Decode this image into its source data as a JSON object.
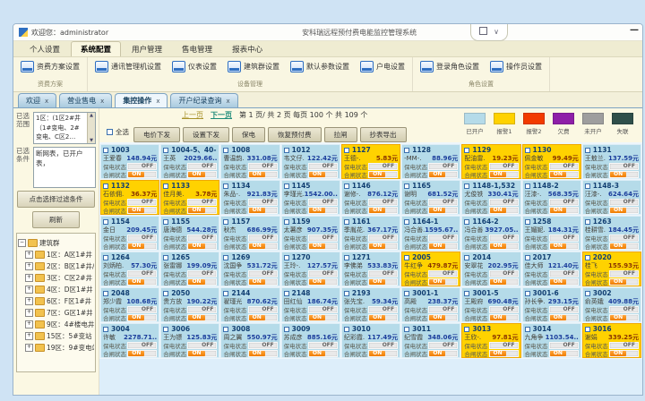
{
  "window": {
    "greeting": "欢迎您：administrator",
    "title": "安科瑞远程预付费电能监控管理系统",
    "collapse_glyph": "∨",
    "minimize_glyph": "—"
  },
  "menu_tabs": [
    {
      "label": "个人设置",
      "active": false
    },
    {
      "label": "系统配置",
      "active": true
    },
    {
      "label": "用户管理",
      "active": false
    },
    {
      "label": "售电管理",
      "active": false
    },
    {
      "label": "报表中心",
      "active": false
    }
  ],
  "ribbon": {
    "groups": [
      {
        "caption": "资费方案",
        "items": [
          "资费方案设置"
        ]
      },
      {
        "caption": "设备管理",
        "items": [
          "通讯管理机设置",
          "仪表设置",
          "建筑群设置",
          "默认参数设置",
          "户电设置"
        ]
      },
      {
        "caption": "角色设置",
        "items": [
          "登录角色设置",
          "操作员设置"
        ]
      }
    ]
  },
  "doc_tabs": [
    {
      "label": "欢迎",
      "active": false
    },
    {
      "label": "营业售电",
      "active": false
    },
    {
      "label": "集控操作",
      "active": true
    },
    {
      "label": "开户纪录查询",
      "active": false
    }
  ],
  "sidebar": {
    "scope_label": "已选范围",
    "scope_lines": [
      "1区：(1区2#井",
      "（1#变电、2#",
      "变电、C区2…"
    ],
    "cond_label": "已选条件",
    "cond_text": "断网表，已开户表，",
    "filter_button": "点击选择过滤条件",
    "refresh_button": "刷新",
    "tree": {
      "root": "建筑群",
      "nodes": [
        "1区：A区1#井",
        "2区：B区1#井/B区1#",
        "3区：C区2#井（1#变",
        "4区：D区1#井（D区1",
        "6区：F区1#井（F区1#",
        "7区：G区1#井",
        "9区：4#楼电井（4#楼",
        "15区：5#变站（3#变",
        "19区：9#变电站（2#"
      ]
    }
  },
  "pagination": {
    "prev": "上一页",
    "next": "下一页",
    "info": "第  1 页/ 共  2 页  每页 100 个  共  109 个"
  },
  "toolbar": {
    "select_all": "全选",
    "buttons": [
      "电价下发",
      "设置下发",
      "保电",
      "恢复预付费",
      "拉闸",
      "抄表导出"
    ]
  },
  "legend": [
    {
      "label": "已开户",
      "color": "#b5dbe9"
    },
    {
      "label": "报警1",
      "color": "#ffd200"
    },
    {
      "label": "报警2",
      "color": "#f23b00"
    },
    {
      "label": "欠费",
      "color": "#8e1fa8"
    },
    {
      "label": "未开户",
      "color": "#9e9e9e"
    },
    {
      "label": "失联",
      "color": "#2f4f4a"
    }
  ],
  "labels": {
    "protect": "保电状态",
    "close": "合闸状态",
    "on": "ON",
    "off": "OFF"
  },
  "cards": [
    {
      "room": "1003",
      "name": "王爱春",
      "balance": "148.94元",
      "status": "open"
    },
    {
      "room": "1004-5、40-",
      "name": "王英",
      "balance": "2029.66..",
      "status": "open"
    },
    {
      "room": "1008",
      "name": "曹温韵.",
      "balance": "331.08元",
      "status": "open"
    },
    {
      "room": "1012",
      "name": "韦文仔.",
      "balance": "122.42元",
      "status": "open"
    },
    {
      "room": "1127",
      "name": "王德-.",
      "balance": "5.83元",
      "status": "alarm1"
    },
    {
      "room": "1128",
      "name": "-MM-.",
      "balance": "88.96元",
      "status": "open"
    },
    {
      "room": "1129",
      "name": "配油雷.",
      "balance": "19.23元",
      "status": "alarm1"
    },
    {
      "room": "1130",
      "name": "佩金敏",
      "balance": "99.49元",
      "status": "alarm1"
    },
    {
      "room": "1131",
      "name": "王敖兰.",
      "balance": "137.59元",
      "status": "open"
    },
    {
      "room": "1132",
      "name": "石依佣.",
      "balance": "36.37元",
      "status": "alarm1"
    },
    {
      "room": "1133",
      "name": "佳月美.",
      "balance": "3.78元",
      "status": "alarm1"
    },
    {
      "room": "1134",
      "name": "朱品-.",
      "balance": "921.83元",
      "status": "open"
    },
    {
      "room": "1145",
      "name": "李瑾光.",
      "balance": "1542.00..",
      "status": "open"
    },
    {
      "room": "1146",
      "name": "谢修-.",
      "balance": "876.12元",
      "status": "open"
    },
    {
      "room": "1165",
      "name": "谢明",
      "balance": "681.52元",
      "status": "open"
    },
    {
      "room": "1148-1,532",
      "name": "尤俊铁",
      "balance": "330.41元",
      "status": "open"
    },
    {
      "room": "1148-2",
      "name": "汪漆-.",
      "balance": "568.35元",
      "status": "open"
    },
    {
      "room": "1148-3",
      "name": "汪漆-.",
      "balance": "624.64元",
      "status": "open"
    },
    {
      "room": "1154",
      "name": "金日",
      "balance": "209.45元",
      "status": "open"
    },
    {
      "room": "1155",
      "name": "唐海德",
      "balance": "544.28元",
      "status": "open"
    },
    {
      "room": "1157",
      "name": "秋杰",
      "balance": "686.99元",
      "status": "open"
    },
    {
      "room": "1159",
      "name": "太薯彦",
      "balance": "907.35元",
      "status": "open"
    },
    {
      "room": "1161",
      "name": "季胤花.",
      "balance": "367.17元",
      "status": "open"
    },
    {
      "room": "1164-1",
      "name": "冯合善.",
      "balance": "1595.67..",
      "status": "open"
    },
    {
      "room": "1164-2",
      "name": "冯合善",
      "balance": "3927.05..",
      "status": "open"
    },
    {
      "room": "1258",
      "name": "王媚妮.",
      "balance": "184.31元",
      "status": "open"
    },
    {
      "room": "1263",
      "name": "桂耕雪.",
      "balance": "184.45元",
      "status": "open"
    },
    {
      "room": "1264",
      "name": "刘炳柏.",
      "balance": "57.30元",
      "status": "open"
    },
    {
      "room": "1265",
      "name": "张雷娜",
      "balance": "199.09元",
      "status": "open"
    },
    {
      "room": "1269",
      "name": "沈国争",
      "balance": "531.72元",
      "status": "open"
    },
    {
      "room": "1270",
      "name": "王玲-.",
      "balance": "127.57元",
      "status": "open"
    },
    {
      "room": "1271",
      "name": "李佛弟",
      "balance": "533.83元",
      "status": "open"
    },
    {
      "room": "2005",
      "name": "牛红争",
      "balance": "479.87元",
      "status": "alarm1"
    },
    {
      "room": "2014",
      "name": "安翠花",
      "balance": "202.95元",
      "status": "open"
    },
    {
      "room": "2017",
      "name": "佳大师",
      "balance": "121.40元",
      "status": "open"
    },
    {
      "room": "2020",
      "name": "桂飞",
      "balance": "155.93元",
      "status": "alarm1"
    },
    {
      "room": "2048",
      "name": "郑少霞",
      "balance": "108.68元",
      "status": "open"
    },
    {
      "room": "2050",
      "name": "贵方放",
      "balance": "190.22元",
      "status": "open"
    },
    {
      "room": "2144",
      "name": "翟瑾光",
      "balance": "870.62元",
      "status": "open"
    },
    {
      "room": "2148",
      "name": "田红仙",
      "balance": "186.74元",
      "status": "open"
    },
    {
      "room": "2193",
      "name": "张先宝.",
      "balance": "59.34元",
      "status": "open"
    },
    {
      "room": "3001-1",
      "name": "高殿",
      "balance": "238.37元",
      "status": "open"
    },
    {
      "room": "3001-5",
      "name": "王殿府",
      "balance": "690.48元",
      "status": "open"
    },
    {
      "room": "3001-6",
      "name": "孙长争.",
      "balance": "293.15元",
      "status": "open"
    },
    {
      "room": "3002",
      "name": "俞英娥",
      "balance": "409.88元",
      "status": "open"
    },
    {
      "room": "3004",
      "name": "许敏",
      "balance": "2278.71..",
      "status": "open"
    },
    {
      "room": "3006",
      "name": "王为镖",
      "balance": "125.83元",
      "status": "open"
    },
    {
      "room": "3008",
      "name": "周之翼",
      "balance": "550.97元",
      "status": "open"
    },
    {
      "room": "3009",
      "name": "苏成彦",
      "balance": "885.16元",
      "status": "open"
    },
    {
      "room": "3010",
      "name": "纪彩霞.",
      "balance": "117.49元",
      "status": "open"
    },
    {
      "room": "3011",
      "name": "纪雪霞",
      "balance": "348.06元",
      "status": "open"
    },
    {
      "room": "3013",
      "name": "王欣-.",
      "balance": "97.81元",
      "status": "alarm1"
    },
    {
      "room": "3014",
      "name": "九角争",
      "balance": "1103.54..",
      "status": "open"
    },
    {
      "room": "3016",
      "name": "谢娟",
      "balance": "339.25元",
      "status": "alarm1"
    }
  ]
}
